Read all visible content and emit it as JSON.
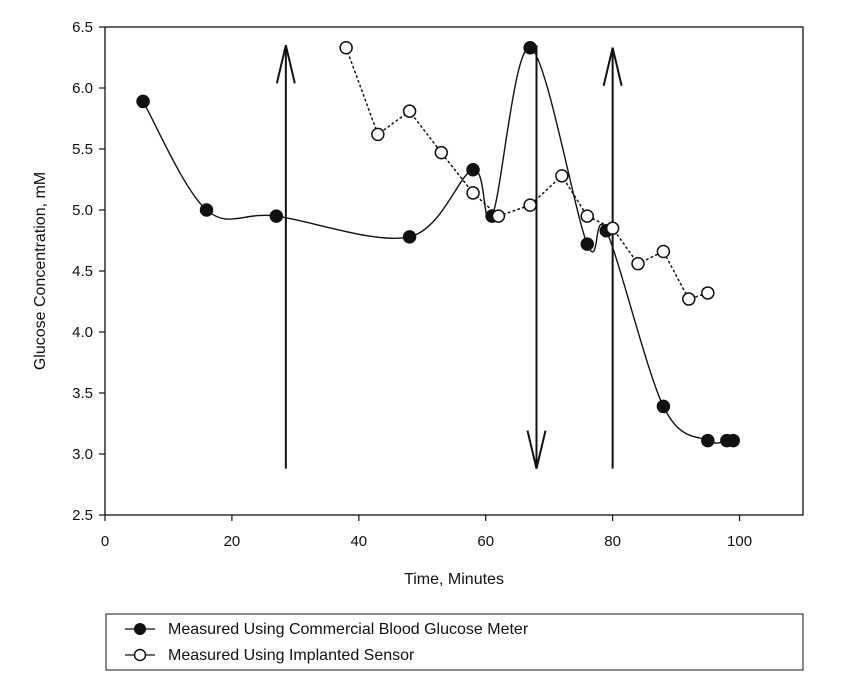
{
  "chart_data": {
    "type": "line",
    "title": "",
    "xlabel": "Time, Minutes",
    "ylabel": "Glucose Concentration, mM",
    "xlim": [
      0,
      110
    ],
    "ylim": [
      2.5,
      6.5
    ],
    "x_ticks": [
      0,
      20,
      40,
      60,
      80,
      100
    ],
    "y_ticks": [
      2.5,
      3.0,
      3.5,
      4.0,
      4.5,
      5.0,
      5.5,
      6.0,
      6.5
    ],
    "x_tick_labels": [
      "0",
      "20",
      "40",
      "60",
      "80",
      "100"
    ],
    "y_tick_labels": [
      "2.5",
      "3.0",
      "3.5",
      "4.0",
      "4.5",
      "5.0",
      "5.5",
      "6.0",
      "6.5"
    ],
    "grid": false,
    "legend_position": "bottom",
    "series": [
      {
        "name": "Measured Using Commercial Blood Glucose Meter",
        "marker": "filled-circle",
        "line_style": "solid-smooth",
        "x": [
          6,
          16,
          27,
          48,
          58,
          61,
          67,
          76,
          79,
          88,
          95,
          98,
          99
        ],
        "values": [
          5.89,
          5.0,
          4.95,
          4.78,
          5.33,
          4.95,
          6.33,
          4.72,
          4.83,
          3.39,
          3.11,
          3.11,
          3.11
        ]
      },
      {
        "name": "Measured Using Implanted Sensor",
        "marker": "open-circle",
        "line_style": "dotted",
        "x": [
          38,
          43,
          48,
          53,
          58,
          62,
          67,
          72,
          76,
          80,
          84,
          88,
          92,
          95
        ],
        "values": [
          6.33,
          5.62,
          5.81,
          5.47,
          5.14,
          4.95,
          5.04,
          5.28,
          4.95,
          4.85,
          4.56,
          4.66,
          4.27,
          4.32
        ]
      }
    ],
    "annotations": [
      {
        "type": "arrow",
        "direction": "up",
        "x": 28.5,
        "from": 2.88,
        "to": 6.35
      },
      {
        "type": "arrow",
        "direction": "down",
        "x": 68,
        "from": 6.35,
        "to": 2.88
      },
      {
        "type": "arrow",
        "direction": "up",
        "x": 80,
        "from": 2.88,
        "to": 6.33
      }
    ]
  }
}
